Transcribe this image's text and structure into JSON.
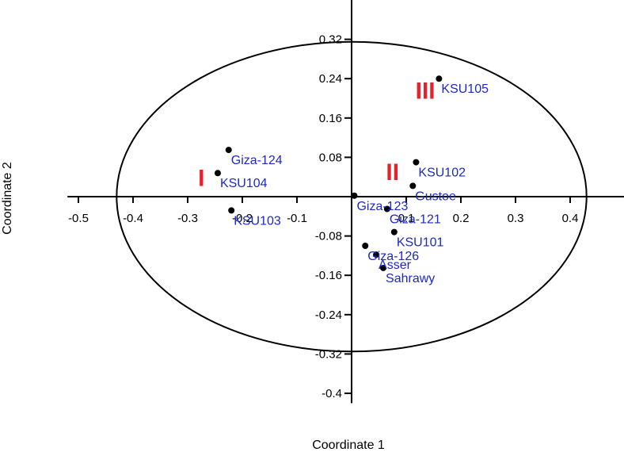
{
  "chart_data": {
    "type": "scatter",
    "title": "",
    "xlabel": "Coordinate 1",
    "ylabel": "Coordinate 2",
    "xlim": [
      -0.52,
      0.5
    ],
    "ylim": [
      -0.42,
      0.4
    ],
    "x_ticks": [
      -0.5,
      -0.4,
      -0.3,
      -0.2,
      -0.1,
      0.1,
      0.2,
      0.3,
      0.4
    ],
    "x_tick_labels": [
      "-0.5",
      "-0.4",
      "-0.3",
      "-0.2",
      "-0.1",
      "0.1",
      "0.2",
      "0.3",
      "0.4"
    ],
    "y_ticks": [
      0.32,
      0.24,
      0.16,
      0.08,
      -0.08,
      -0.16,
      -0.24,
      -0.32,
      -0.4
    ],
    "y_tick_labels": [
      "0.32",
      "0.24",
      "0.16",
      "0.08",
      "-0.08",
      "-0.16",
      "-0.24",
      "-0.32",
      "-0.4"
    ],
    "ellipse": {
      "cx": 0.0,
      "cy": 0.0,
      "rx": 0.43,
      "ry": 0.315
    },
    "points": [
      {
        "label": "Giza-124",
        "x": -0.225,
        "y": 0.095
      },
      {
        "label": "KSU104",
        "x": -0.245,
        "y": 0.048
      },
      {
        "label": "KSU103",
        "x": -0.22,
        "y": -0.028
      },
      {
        "label": "KSU105",
        "x": 0.16,
        "y": 0.24
      },
      {
        "label": "KSU102",
        "x": 0.118,
        "y": 0.07
      },
      {
        "label": "Gustoe",
        "x": 0.112,
        "y": 0.022
      },
      {
        "label": "Giza-123",
        "x": 0.005,
        "y": 0.002
      },
      {
        "label": "Giza-121",
        "x": 0.065,
        "y": -0.025
      },
      {
        "label": "KSU101",
        "x": 0.078,
        "y": -0.072
      },
      {
        "label": "Giza-126",
        "x": 0.025,
        "y": -0.1
      },
      {
        "label": "Asser",
        "x": 0.045,
        "y": -0.118
      },
      {
        "label": "Sahrawy",
        "x": 0.058,
        "y": -0.145
      }
    ],
    "groups": [
      {
        "label": "I",
        "x": -0.275,
        "y": 0.038
      },
      {
        "label": "II",
        "x": 0.075,
        "y": 0.05
      },
      {
        "label": "III",
        "x": 0.135,
        "y": 0.215
      }
    ],
    "colors": {
      "point": "#000000",
      "point_label": "#1c28c8",
      "group_label": "#e8202a",
      "axis": "#000000",
      "ellipse": "#000000"
    },
    "grid": false
  }
}
